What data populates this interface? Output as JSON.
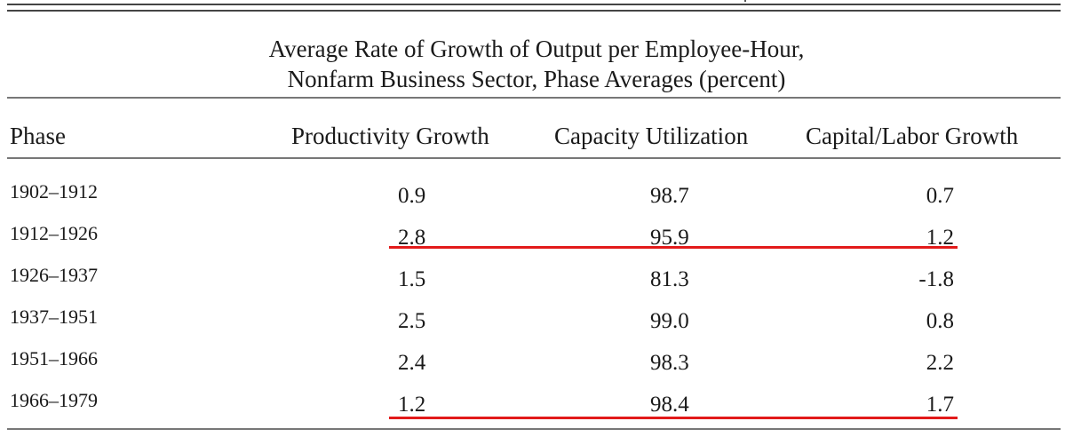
{
  "caption": {
    "line1": "Average Rate of Growth of Output per Employee-Hour,",
    "line2": "Nonfarm Business Sector, Phase Averages (percent)"
  },
  "columns": [
    "Phase",
    "Productivity Growth",
    "Capacity Utilization",
    "Capital/Labor Growth"
  ],
  "rows": [
    {
      "phase": "1902–1912",
      "productivity": "0.9",
      "capacity": "98.7",
      "capital_labor": "0.7"
    },
    {
      "phase": "1912–1926",
      "productivity": "2.8",
      "capacity": "95.9",
      "capital_labor": "1.2"
    },
    {
      "phase": "1926–1937",
      "productivity": "1.5",
      "capacity": "81.3",
      "capital_labor": "-1.8"
    },
    {
      "phase": "1937–1951",
      "productivity": "2.5",
      "capacity": "99.0",
      "capital_labor": "0.8"
    },
    {
      "phase": "1951–1966",
      "productivity": "2.4",
      "capacity": "98.3",
      "capital_labor": "2.2"
    },
    {
      "phase": "1966–1979",
      "productivity": "1.2",
      "capacity": "98.4",
      "capital_labor": "1.7"
    }
  ],
  "highlights": {
    "underlined_rows": [
      "1912–1926",
      "1966–1979"
    ],
    "underline_color": "#e21a1a"
  }
}
